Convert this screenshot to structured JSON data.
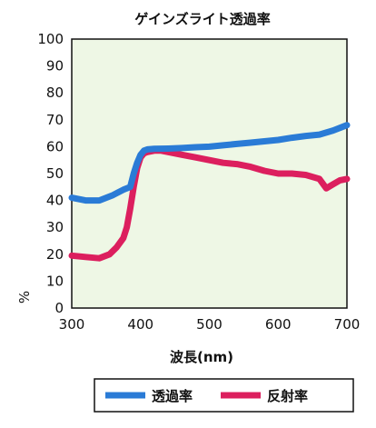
{
  "chart_data": {
    "type": "line",
    "title": "ゲインズライト透過率",
    "xlabel": "波長(nm)",
    "ylabel": "%",
    "xlim": [
      300,
      700
    ],
    "ylim": [
      0,
      100
    ],
    "x_ticks": [
      300,
      400,
      500,
      600,
      700
    ],
    "y_ticks": [
      0,
      10,
      20,
      30,
      40,
      50,
      60,
      70,
      80,
      90,
      100
    ],
    "grid": false,
    "background": "#eef7e5",
    "legend_position": "bottom",
    "series": [
      {
        "name": "透過率",
        "color": "#2a7bd6",
        "x": [
          300,
          320,
          340,
          360,
          375,
          385,
          390,
          395,
          400,
          405,
          410,
          420,
          440,
          460,
          480,
          500,
          520,
          540,
          560,
          580,
          600,
          620,
          640,
          660,
          680,
          700
        ],
        "y": [
          41,
          40,
          40,
          42,
          44,
          45,
          50,
          54,
          57,
          58.5,
          59,
          59.2,
          59.3,
          59.5,
          59.8,
          60,
          60.5,
          61,
          61.5,
          62,
          62.5,
          63.3,
          64,
          64.5,
          66,
          68
        ]
      },
      {
        "name": "反射率",
        "color": "#dc1f5e",
        "x": [
          300,
          320,
          340,
          355,
          365,
          375,
          380,
          385,
          390,
          395,
          400,
          405,
          410,
          420,
          430,
          440,
          460,
          480,
          500,
          520,
          540,
          560,
          580,
          600,
          620,
          640,
          660,
          670,
          680,
          690,
          700
        ],
        "y": [
          19.5,
          19,
          18.5,
          20,
          22.5,
          26,
          30,
          37,
          45,
          52,
          56,
          57.5,
          58,
          58.5,
          58.5,
          58,
          57,
          56,
          55,
          54,
          53.5,
          52.5,
          51,
          50,
          50,
          49.5,
          48,
          44.5,
          46,
          47.5,
          48
        ]
      }
    ]
  }
}
